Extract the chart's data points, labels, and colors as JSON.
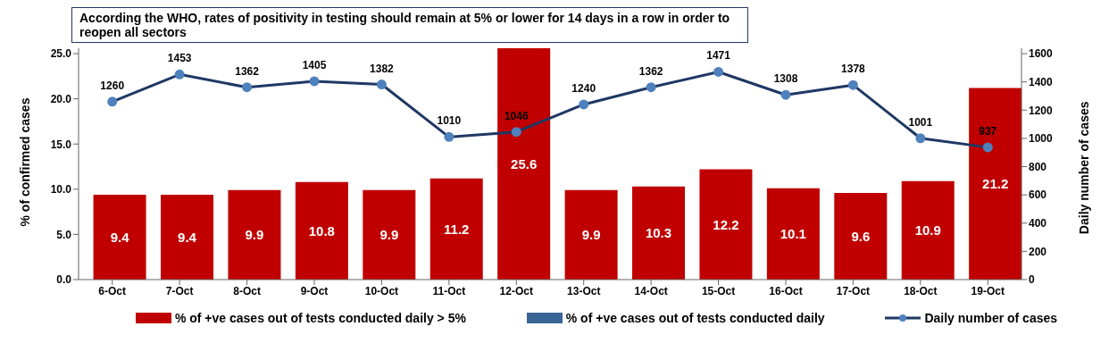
{
  "chart_data": {
    "type": "bar",
    "title": "According the WHO, rates of positivity in testing should remain at 5%  or lower for 14 days in a row in order to reopen all sectors",
    "categories": [
      "6-Oct",
      "7-Oct",
      "8-Oct",
      "9-Oct",
      "10-Oct",
      "11-Oct",
      "12-Oct",
      "13-Oct",
      "14-Oct",
      "15-Oct",
      "16-Oct",
      "17-Oct",
      "18-Oct",
      "19-Oct"
    ],
    "series": [
      {
        "name": "% of +ve cases out of tests conducted daily > 5%",
        "color": "#c00000",
        "values": [
          9.4,
          9.4,
          9.9,
          10.8,
          9.9,
          11.2,
          25.6,
          9.9,
          10.3,
          12.2,
          10.1,
          9.6,
          10.9,
          21.2
        ]
      },
      {
        "name": "% of +ve cases out of tests conducted daily",
        "color": "#3a6496",
        "values": [
          null,
          null,
          null,
          null,
          null,
          null,
          null,
          null,
          null,
          null,
          null,
          null,
          null,
          null
        ]
      },
      {
        "name": "Daily  number of cases",
        "type": "line",
        "axis": "y2",
        "color": "#1f3864",
        "values": [
          1260,
          1453,
          1362,
          1405,
          1382,
          1010,
          1046,
          1240,
          1362,
          1471,
          1308,
          1378,
          1001,
          937
        ]
      }
    ],
    "ylabel": "% of confirmed cases",
    "y2label": "Daily number of cases",
    "ylim": [
      0,
      25.6
    ],
    "yticks": [
      {
        "value": 0,
        "label": "0.0"
      },
      {
        "value": 5,
        "label": "5.0"
      },
      {
        "value": 10,
        "label": "10.0"
      },
      {
        "value": 15,
        "label": "15.0"
      },
      {
        "value": 20,
        "label": "20.0"
      },
      {
        "value": 25,
        "label": "25.0"
      }
    ],
    "y2lim": [
      0,
      1638.4
    ],
    "y2ticks": [
      0,
      200,
      400,
      600,
      800,
      1000,
      1200,
      1400,
      1600
    ],
    "data_labels": true,
    "legend": "bottom",
    "marker": "circle",
    "line_style": "solid",
    "grid": false
  }
}
